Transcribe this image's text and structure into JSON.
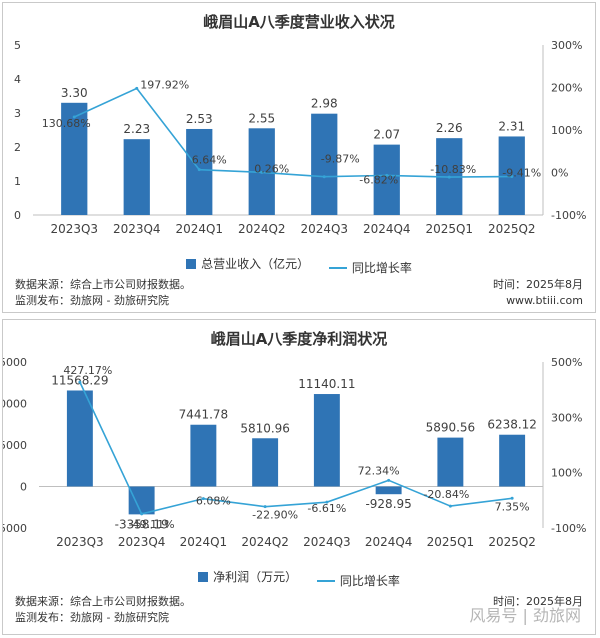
{
  "colors": {
    "bar": "#2f74b5",
    "line": "#35a3d6",
    "axis": "#bfbfbf",
    "text": "#404040"
  },
  "chart_data": [
    {
      "type": "bar",
      "title": "峨眉山A八季度营业收入状况",
      "categories": [
        "2023Q3",
        "2023Q4",
        "2024Q1",
        "2024Q2",
        "2024Q3",
        "2024Q4",
        "2025Q1",
        "2025Q2"
      ],
      "series": [
        {
          "name": "总营业收入（亿元）",
          "type": "bar",
          "axis": "left",
          "values": [
            3.3,
            2.23,
            2.53,
            2.55,
            2.98,
            2.07,
            2.26,
            2.31
          ],
          "labels": [
            "3.30",
            "2.23",
            "2.53",
            "2.55",
            "2.98",
            "2.07",
            "2.26",
            "2.31"
          ]
        },
        {
          "name": "同比增长率",
          "type": "line",
          "axis": "right",
          "values": [
            130.68,
            197.92,
            6.64,
            0.26,
            -9.87,
            -6.82,
            -10.83,
            -9.41
          ],
          "labels": [
            "130.68%",
            "197.92%",
            "6.64%",
            "0.26%",
            "-9.87%",
            "-6.82%",
            "-10.83%",
            "-9.41%"
          ]
        }
      ],
      "ylim": [
        0,
        5
      ],
      "y_ticks": [
        "0",
        "1",
        "2",
        "3",
        "4",
        "5"
      ],
      "y_tick_values": [
        0,
        1,
        2,
        3,
        4,
        5
      ],
      "y2lim": [
        -100,
        300
      ],
      "y2_ticks": [
        "-100%",
        "0%",
        "100%",
        "200%",
        "300%"
      ],
      "y2_tick_values": [
        -100,
        0,
        100,
        200,
        300
      ],
      "legend": "bottom",
      "grid": false,
      "footer": {
        "source": "数据来源：综合上市公司财报数据。",
        "publisher": "监测发布：劲旅网 - 劲旅研究院",
        "date": "时间：2025年8月",
        "site": "www.btiii.com"
      }
    },
    {
      "type": "bar",
      "title": "峨眉山A八季度净利润状况",
      "categories": [
        "2023Q3",
        "2023Q4",
        "2024Q1",
        "2024Q2",
        "2024Q3",
        "2024Q4",
        "2025Q1",
        "2025Q2"
      ],
      "series": [
        {
          "name": "净利润（万元）",
          "type": "bar",
          "axis": "left",
          "values": [
            11568.29,
            -3358.19,
            7441.78,
            5810.96,
            11140.11,
            -928.95,
            5890.56,
            6238.12
          ],
          "labels": [
            "11568.29",
            "-3358.19",
            "7441.78",
            "5810.96",
            "11140.11",
            "-928.95",
            "5890.56",
            "6238.12"
          ]
        },
        {
          "name": "同比增长率",
          "type": "line",
          "axis": "right",
          "values": [
            427.17,
            -49.11,
            6.08,
            -22.9,
            -6.61,
            72.34,
            -20.84,
            7.35
          ],
          "labels": [
            "427.17%",
            "-49.11%",
            "6.08%",
            "-22.90%",
            "-6.61%",
            "72.34%",
            "-20.84%",
            "7.35%"
          ]
        }
      ],
      "ylim": [
        -5000,
        15000
      ],
      "y_ticks": [
        "-5000",
        "0",
        "5000",
        "10000",
        "15000"
      ],
      "y_tick_values": [
        -5000,
        0,
        5000,
        10000,
        15000
      ],
      "y2lim": [
        -100,
        500
      ],
      "y2_ticks": [
        "-100%",
        "100%",
        "300%",
        "500%"
      ],
      "y2_tick_values": [
        -100,
        100,
        300,
        500
      ],
      "legend": "bottom",
      "grid": false,
      "footer": {
        "source": "数据来源：综合上市公司财报数据。",
        "publisher": "监测发布：劲旅网 - 劲旅研究院",
        "date": "时间：2025年8月"
      }
    }
  ],
  "watermark": "风易号 | 劲旅网"
}
